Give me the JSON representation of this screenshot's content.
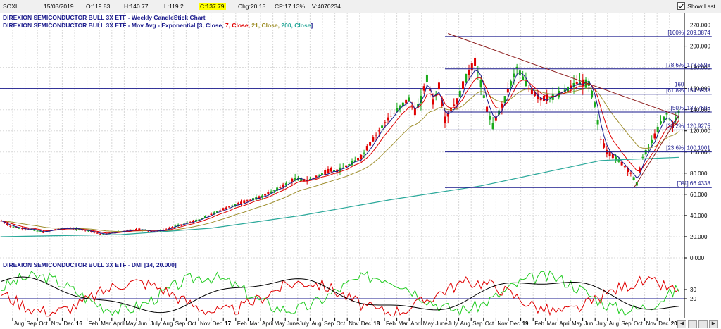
{
  "topbar": {
    "symbol": "SOXL",
    "date": "15/03/2019",
    "open": "O:119.83",
    "high": "H:140.77",
    "low": "L:119.2",
    "close": "C:137.79",
    "change": "Chg:20.15",
    "change_pct": "CP:17.13%",
    "volume": "V:4070234",
    "show_last_label": "Show Last"
  },
  "legend": {
    "line1": "DIREXION SEMICONDUCTOR BULL 3X ETF - Weekly CandleStick Chart",
    "line2_prefix": "DIREXION SEMICONDUCTOR BULL 3X ETF - Mov Avg - Exponential [",
    "ma": [
      {
        "text": "3, Close, ",
        "color": "#1a1a8c"
      },
      {
        "text": "7, Close, ",
        "color": "#e00000"
      },
      {
        "text": "21, Close, ",
        "color": "#9a8a20"
      },
      {
        "text": "200, Close",
        "color": "#2aa89a"
      }
    ],
    "line2_suffix": "]"
  },
  "dmi_legend": "DIREXION SEMICONDUCTOR BULL 3X ETF - DMI [14, 20.000]",
  "colors": {
    "up": "#1aaa1a",
    "down": "#e00000",
    "ema3": "#1a1a8c",
    "ema7": "#e00000",
    "ema21": "#a09030",
    "ema200": "#2aa89a",
    "fib": "#1a1a8c",
    "trend": "#8b1a1a",
    "hline": "#1a1a8c",
    "dmi_plus": "#22cc22",
    "dmi_minus": "#e00000",
    "adx": "#000000"
  },
  "chart_data": {
    "type": "candlestick",
    "title": "DIREXION SEMICONDUCTOR BULL 3X ETF - Weekly CandleStick Chart",
    "ylim": [
      0,
      225
    ],
    "y_ticks": [
      "0.000",
      "20.000",
      "40.000",
      "60.000",
      "80.000",
      "100.000",
      "120.000",
      "140.000",
      "160.000",
      "180.000",
      "200.000",
      "220.000"
    ],
    "y_tick_values": [
      0,
      20,
      40,
      60,
      80,
      100,
      120,
      140,
      160,
      180,
      200,
      220
    ],
    "horizontal_line": {
      "value": 160,
      "label": "160"
    },
    "fib_levels": [
      {
        "label": "[100%] 209.0874",
        "value": 209.0874
      },
      {
        "label": "[78.6%] 178.5596",
        "value": 178.5596
      },
      {
        "label": "[61.8%] 154.5938",
        "value": 154.5938
      },
      {
        "label": "[50%] 137.7606",
        "value": 137.7606
      },
      {
        "label": "[38.2%] 120.9275",
        "value": 120.9275
      },
      {
        "label": "[23.6%] 100.1001",
        "value": 100.1001
      },
      {
        "label": "[0%] 66.4338",
        "value": 66.4338
      }
    ],
    "x_labels": [
      "Aug",
      "Sep",
      "Oct",
      "Nov",
      "Dec",
      "16",
      "Feb",
      "Mar",
      "April",
      "May",
      "Jun",
      "July",
      "Aug",
      "Sep",
      "Oct",
      "Nov",
      "Dec",
      "17",
      "Feb",
      "Mar",
      "April",
      "May",
      "June",
      "July",
      "Aug",
      "Sep",
      "Oct",
      "Nov",
      "Dec",
      "18",
      "Feb",
      "Mar",
      "April",
      "May",
      "June",
      "July",
      "Aug",
      "Sep",
      "Oct",
      "Nov",
      "Dec",
      "19",
      "Feb",
      "Mar",
      "April",
      "May",
      "Jun",
      "July",
      "Aug",
      "Sep",
      "Oct",
      "Nov",
      "Dec",
      "20"
    ],
    "bold_x_labels": [
      "16",
      "17",
      "18",
      "19",
      "20"
    ],
    "price_path": [
      [
        0,
        35
      ],
      [
        3,
        30
      ],
      [
        6,
        28
      ],
      [
        10,
        27
      ],
      [
        14,
        24
      ],
      [
        18,
        27
      ],
      [
        22,
        28
      ],
      [
        26,
        27
      ],
      [
        30,
        25
      ],
      [
        34,
        22
      ],
      [
        38,
        24
      ],
      [
        42,
        26
      ],
      [
        46,
        27
      ],
      [
        50,
        25
      ],
      [
        54,
        26
      ],
      [
        58,
        30
      ],
      [
        62,
        33
      ],
      [
        66,
        36
      ],
      [
        70,
        41
      ],
      [
        74,
        46
      ],
      [
        78,
        50
      ],
      [
        82,
        54
      ],
      [
        86,
        57
      ],
      [
        90,
        62
      ],
      [
        94,
        68
      ],
      [
        98,
        75
      ],
      [
        102,
        73
      ],
      [
        106,
        78
      ],
      [
        110,
        83
      ],
      [
        112,
        82
      ],
      [
        116,
        88
      ],
      [
        120,
        95
      ],
      [
        124,
        112
      ],
      [
        128,
        128
      ],
      [
        132,
        140
      ],
      [
        136,
        150
      ],
      [
        138,
        138
      ],
      [
        140,
        150
      ],
      [
        142,
        170
      ],
      [
        144,
        147
      ],
      [
        146,
        162
      ],
      [
        148,
        130
      ],
      [
        150,
        140
      ],
      [
        152,
        148
      ],
      [
        155,
        170
      ],
      [
        158,
        185
      ],
      [
        160,
        165
      ],
      [
        162,
        140
      ],
      [
        164,
        125
      ],
      [
        168,
        150
      ],
      [
        172,
        180
      ],
      [
        176,
        160
      ],
      [
        180,
        150
      ],
      [
        184,
        152
      ],
      [
        188,
        158
      ],
      [
        192,
        165
      ],
      [
        196,
        165
      ],
      [
        198,
        145
      ],
      [
        200,
        112
      ],
      [
        202,
        100
      ],
      [
        206,
        92
      ],
      [
        210,
        80
      ],
      [
        212,
        70
      ],
      [
        214,
        95
      ],
      [
        216,
        105
      ],
      [
        218,
        115
      ],
      [
        220,
        128
      ],
      [
        222,
        136
      ],
      [
        224,
        125
      ],
      [
        226,
        138
      ]
    ],
    "ema200_path": [
      [
        0,
        20
      ],
      [
        40,
        22
      ],
      [
        70,
        28
      ],
      [
        100,
        40
      ],
      [
        130,
        55
      ],
      [
        160,
        68
      ],
      [
        180,
        80
      ],
      [
        200,
        92
      ],
      [
        226,
        95
      ]
    ],
    "dmi": {
      "ylim": [
        0,
        60
      ],
      "y_ticks": [
        "30",
        "20"
      ],
      "y_tick_values": [
        30,
        20
      ]
    }
  }
}
